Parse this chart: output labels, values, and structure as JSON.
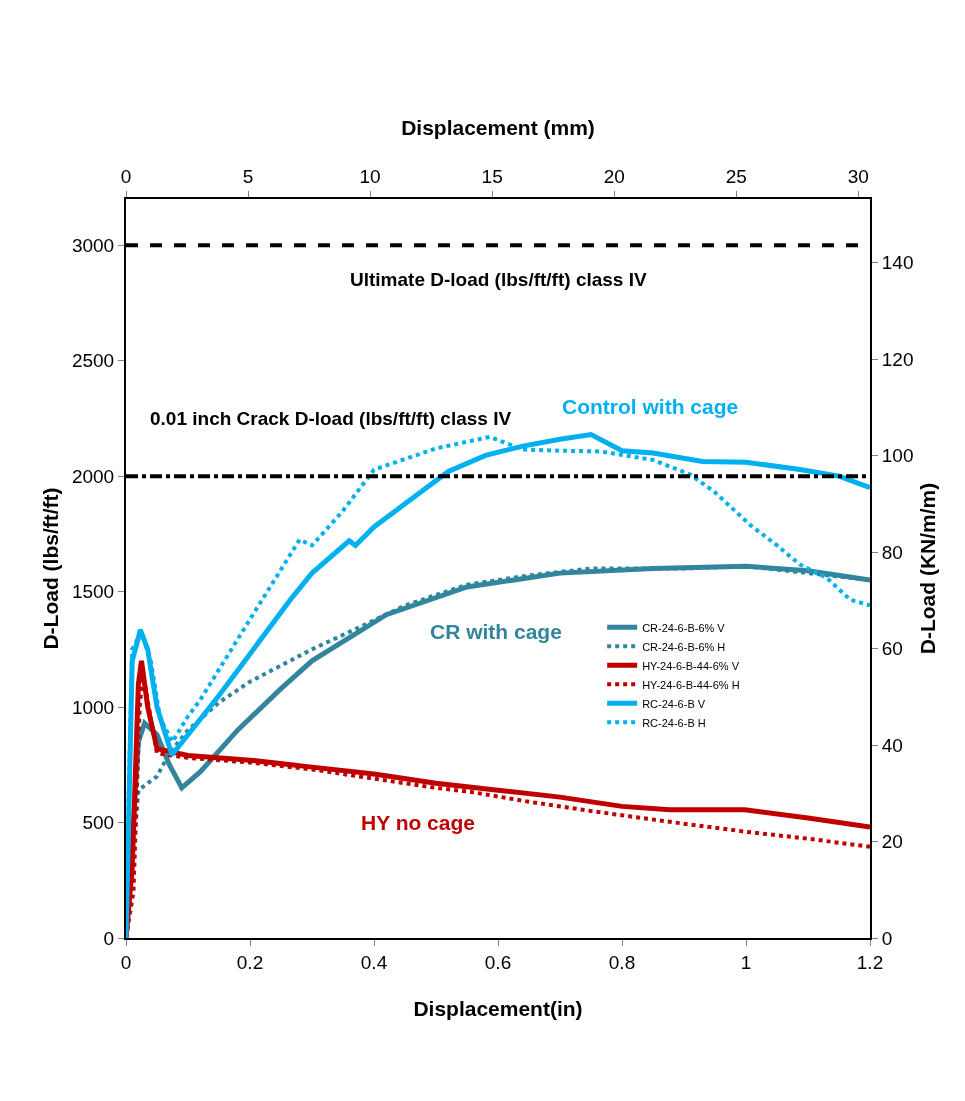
{
  "chart_data": {
    "type": "line",
    "xlabel": "Displacement(in)",
    "ylabel": "D-Load (lbs/ft/ft)",
    "y2label": "D-Load (KN/m/m)",
    "x2label": "Displacement (mm)",
    "xlim": [
      0,
      1.2
    ],
    "xticks": [
      0,
      0.2,
      0.4,
      0.6,
      0.8,
      1,
      1.2
    ],
    "ylim": [
      0,
      3200
    ],
    "yticks": [
      0,
      500,
      1000,
      1500,
      2000,
      2500,
      3000
    ],
    "y2lim": [
      0,
      153.2
    ],
    "y2ticks": [
      0,
      20,
      40,
      60,
      80,
      100,
      120,
      140
    ],
    "x2lim": [
      0,
      30.48
    ],
    "x2ticks": [
      0,
      5,
      10,
      15,
      20,
      25,
      30
    ],
    "legend": "right",
    "marker": "none",
    "series": [
      {
        "name": "CR-24-6-B-6% V",
        "color": "#31859c",
        "line_style": "solid",
        "x": [
          0,
          0.01,
          0.02,
          0.03,
          0.05,
          0.07,
          0.09,
          0.12,
          0.18,
          0.25,
          0.3,
          0.42,
          0.55,
          0.7,
          0.85,
          1.0,
          1.1,
          1.2
        ],
        "values": [
          0,
          400,
          850,
          930,
          880,
          750,
          650,
          720,
          900,
          1080,
          1200,
          1400,
          1520,
          1580,
          1600,
          1610,
          1590,
          1550
        ]
      },
      {
        "name": "CR-24-6-B-6% H",
        "color": "#31859c",
        "line_style": "dotted",
        "x": [
          0,
          0.01,
          0.02,
          0.05,
          0.07,
          0.1,
          0.15,
          0.2,
          0.3,
          0.38,
          0.45,
          0.55,
          0.65,
          0.75,
          0.9,
          1.0,
          1.1,
          1.2
        ],
        "values": [
          0,
          300,
          640,
          700,
          800,
          900,
          1020,
          1110,
          1250,
          1350,
          1440,
          1530,
          1570,
          1600,
          1600,
          1610,
          1580,
          1550
        ]
      },
      {
        "name": "HY-24-6-B-44-6% V",
        "color": "#c00000",
        "line_style": "solid",
        "x": [
          0,
          0.01,
          0.02,
          0.025,
          0.035,
          0.05,
          0.1,
          0.2,
          0.3,
          0.4,
          0.5,
          0.6,
          0.7,
          0.8,
          0.877,
          0.998,
          1.1,
          1.2
        ],
        "values": [
          0,
          300,
          1100,
          1200,
          1000,
          820,
          790,
          770,
          740,
          710,
          670,
          640,
          610,
          570,
          555,
          555,
          520,
          480
        ]
      },
      {
        "name": "HY-24-6-B-44-6% H",
        "color": "#c00000",
        "line_style": "dotted",
        "x": [
          0,
          0.012,
          0.022,
          0.027,
          0.04,
          0.05,
          0.1,
          0.2,
          0.3,
          0.4,
          0.5,
          0.555,
          0.65,
          0.75,
          0.877,
          1.0,
          1.1,
          1.2
        ],
        "values": [
          0,
          200,
          1000,
          1150,
          950,
          800,
          780,
          760,
          730,
          690,
          650,
          633,
          590,
          550,
          503,
          460,
          430,
          395
        ]
      },
      {
        "name": "RC-24-6-B V",
        "color": "#00b0f0",
        "line_style": "solid",
        "x": [
          0,
          0.005,
          0.01,
          0.02,
          0.023,
          0.035,
          0.05,
          0.074,
          0.1,
          0.15,
          0.2,
          0.265,
          0.3,
          0.36,
          0.37,
          0.4,
          0.45,
          0.52,
          0.58,
          0.64,
          0.7,
          0.75,
          0.8,
          0.85,
          0.93,
          1.0,
          1.087,
          1.15,
          1.2
        ],
        "values": [
          0,
          600,
          1200,
          1300,
          1335,
          1250,
          1000,
          793,
          880,
          1050,
          1230,
          1465,
          1580,
          1720,
          1700,
          1780,
          1880,
          2020,
          2090,
          2130,
          2160,
          2180,
          2110,
          2100,
          2063,
          2060,
          2029,
          2000,
          1950
        ]
      },
      {
        "name": "RC-24-6-B H",
        "color": "#00b0f0",
        "line_style": "dotted",
        "x": [
          0,
          0.005,
          0.01,
          0.02,
          0.025,
          0.04,
          0.055,
          0.075,
          0.1,
          0.12,
          0.2,
          0.28,
          0.3,
          0.35,
          0.4,
          0.5,
          0.587,
          0.64,
          0.7,
          0.765,
          0.85,
          0.91,
          0.95,
          1.006,
          1.05,
          1.087,
          1.13,
          1.168,
          1.2
        ],
        "values": [
          0,
          700,
          1250,
          1300,
          1320,
          1200,
          950,
          850,
          960,
          1032,
          1380,
          1725,
          1700,
          1850,
          2028,
          2120,
          2170,
          2115,
          2110,
          2107,
          2070,
          2007,
          1930,
          1790,
          1700,
          1617,
          1560,
          1465,
          1440
        ]
      }
    ],
    "ref_lines": [
      {
        "axis": "y",
        "value": 3000,
        "label": "Ultimate D-load (lbs/ft/ft) class IV",
        "color": "#000000",
        "line_style": "dashed"
      },
      {
        "axis": "y",
        "value": 2000,
        "label": "0.01 inch Crack D-load (lbs/ft/ft) class IV",
        "color": "#000000",
        "line_style": "dashdot"
      }
    ],
    "annotations": [
      "Control with cage",
      "CR with cage",
      "HY no cage"
    ]
  }
}
